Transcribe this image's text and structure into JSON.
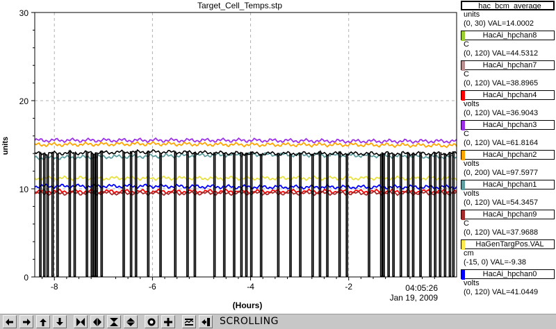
{
  "chart_data": {
    "type": "line",
    "title": "Target_Cell_Temps.stp",
    "xlabel": "(Hours)",
    "ylabel": "units",
    "xlim": [
      -8.4,
      0.2
    ],
    "ylim": [
      0,
      30
    ],
    "x_ticks": [
      "-8",
      "-6",
      "-4",
      "-2"
    ],
    "y_ticks": [
      "0",
      "10",
      "20",
      "30"
    ],
    "grid": true,
    "time_label": "04:05:26",
    "date_label": "Jan 19, 2009",
    "series": [
      {
        "name": "HacAi_hpchan3",
        "color": "#9b30e8",
        "x": [
          -8.4,
          -6,
          -4,
          -2,
          0.2
        ],
        "values": [
          15.5,
          15.5,
          15.5,
          15.4,
          15.4
        ]
      },
      {
        "name": "HacAi_hpchan2",
        "color": "#ffa500",
        "x": [
          -8.4,
          -6,
          -4,
          -2,
          0.2
        ],
        "values": [
          15.0,
          15.1,
          15.0,
          15.0,
          14.9
        ]
      },
      {
        "name": "HacAi_hpchan1",
        "color": "#5f9ea0",
        "x": [
          -8.4,
          -6,
          -4,
          -2,
          0.2
        ],
        "values": [
          13.5,
          13.7,
          13.9,
          13.8,
          13.6
        ]
      },
      {
        "name": "HaGenTargPos.VAL",
        "color": "#e8e040",
        "x": [
          -8.4,
          -6,
          -4,
          -2,
          0.2
        ],
        "values": [
          11.2,
          11.2,
          11.2,
          11.2,
          11.2
        ]
      },
      {
        "name": "HacAi_hpchan0",
        "color": "#0000ff",
        "x": [
          -8.4,
          -6,
          -4,
          -2,
          0.2
        ],
        "values": [
          10.3,
          10.3,
          10.2,
          10.2,
          10.2
        ]
      },
      {
        "name": "HacAi_hpchan4",
        "color": "#ff0000",
        "x": [
          -8.4,
          -6,
          -4,
          -2,
          0.2
        ],
        "values": [
          9.7,
          9.7,
          9.7,
          9.7,
          9.7
        ]
      },
      {
        "name": "HacAi_hpchan9",
        "color": "#a52a2a",
        "x": [
          -8.4,
          -6,
          -4,
          -2,
          0.2
        ],
        "values": [
          9.5,
          9.5,
          9.5,
          9.5,
          9.5
        ]
      },
      {
        "name": "hac_bcm_average",
        "color": "#000000",
        "x": [
          -8.4,
          -6,
          -4,
          -2,
          0.2
        ],
        "values": [
          14.0,
          14.2,
          14.0,
          14.0,
          14.0
        ],
        "dropouts_hours": [
          -8.3,
          -8.22,
          -8.15,
          -8.05,
          -7.95,
          -7.7,
          -7.6,
          -7.35,
          -7.25,
          -7.2,
          -7.15,
          -7.05,
          -6.6,
          -6.45,
          -6.35,
          -6.1,
          -5.85,
          -5.55,
          -5.3,
          -5.15,
          -4.75,
          -4.55,
          -4.35,
          -4.2,
          -4.1,
          -4.0,
          -3.8,
          -3.45,
          -3.2,
          -3.0,
          -2.75,
          -2.6,
          -2.45,
          -2.2,
          -2.05,
          -1.6,
          -1.35,
          -1.3,
          -1.2,
          -1.1,
          -0.95,
          -0.8,
          -0.7,
          -0.55,
          -0.35,
          -0.25,
          -0.15,
          -0.05,
          0.05,
          0.12
        ]
      }
    ]
  },
  "legend": [
    {
      "name": "hac_bcm_average",
      "color": "#000000",
      "unit": "units",
      "range": "(0, 30) VAL=14.0002"
    },
    {
      "name": "HacAi_hpchan8",
      "color": "#9acd32",
      "unit": "C",
      "range": "(0, 120) VAL=44.5312"
    },
    {
      "name": "HacAi_hpchan7",
      "color": "#bc8f8f",
      "unit": "C",
      "range": "(0, 120) VAL=38.8965"
    },
    {
      "name": "HacAi_hpchan4",
      "color": "#ff0000",
      "unit": "volts",
      "range": "(0, 120) VAL=36.9043"
    },
    {
      "name": "HacAi_hpchan3",
      "color": "#9b30e8",
      "unit": "C",
      "range": "(0, 120) VAL=61.8164"
    },
    {
      "name": "HacAi_hpchan2",
      "color": "#ffa500",
      "unit": "volts",
      "range": "(0, 200) VAL=97.5977"
    },
    {
      "name": "HacAi_hpchan1",
      "color": "#5f9ea0",
      "unit": "volts",
      "range": "(0, 120) VAL=54.3457"
    },
    {
      "name": "HacAi_hpchan9",
      "color": "#a52a2a",
      "unit": "C",
      "range": "(0, 120) VAL=37.9688"
    },
    {
      "name": "HaGenTargPos.VAL",
      "color": "#ffe84a",
      "unit": "cm",
      "range": "(-15, 0) VAL=-9.38"
    },
    {
      "name": "HacAi_hpchan0",
      "color": "#0000ff",
      "unit": "volts",
      "range": "(0, 120) VAL=41.0449"
    }
  ],
  "toolbar": {
    "buttons": [
      "arrow-left-icon",
      "arrow-right-icon",
      "arrow-up-icon",
      "arrow-down-icon",
      "zoom-in-horizontal-icon",
      "zoom-out-horizontal-icon",
      "zoom-in-vertical-icon",
      "zoom-out-vertical-icon",
      "record-icon",
      "add-icon",
      "autoscale-icon",
      "export-icon"
    ],
    "status": "SCROLLING"
  }
}
